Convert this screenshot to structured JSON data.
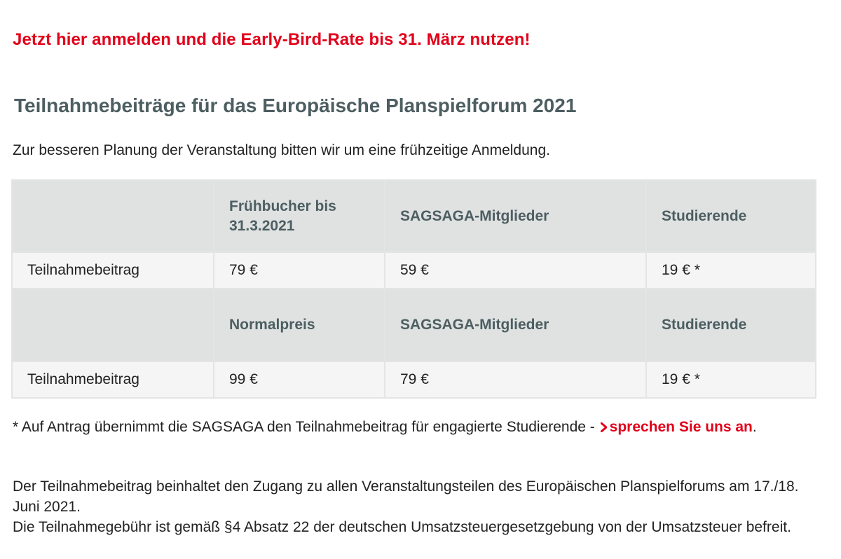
{
  "promo": "Jetzt hier anmelden und die Early-Bird-Rate bis 31. März nutzen!",
  "heading": "Teilnahmebeiträge für das Europäische Planspielforum 2021",
  "intro": "Zur besseren Planung der Veranstaltung bitten wir um eine frühzeitige Anmeldung.",
  "table": {
    "early": {
      "headers": [
        "",
        "Frühbucher bis 31.3.2021",
        "SAGSAGA-Mitglieder",
        "Studierende"
      ],
      "row_label": "Teilnahmebeitrag",
      "values": [
        "79 €",
        "59 €",
        "19 € *"
      ]
    },
    "regular": {
      "headers": [
        "",
        "Normalpreis",
        "SAGSAGA-Mitglieder",
        "Studierende"
      ],
      "row_label": "Teilnahmebeitrag",
      "values": [
        "99 €",
        "79 €",
        "19 € *"
      ]
    }
  },
  "footnote": {
    "text": "* Auf Antrag übernimmt die SAGSAGA den Teilnahmebeitrag für engagierte Studierende -",
    "link": "sprechen Sie uns an",
    "after": ".",
    "link_icon": "chevron-right-icon"
  },
  "info": {
    "line1": "Der Teilnahmebeitrag beinhaltet den Zugang zu allen Veranstaltungsteilen des Europäischen Planspielforums am 17./18. Juni 2021.",
    "line2": "Die Teilnahmegebühr ist gemäß §4 Absatz 22 der deutschen Umsatzsteuergesetzgebung von der Umsatzsteuer befreit."
  },
  "colors": {
    "accent_red": "#e2001a",
    "heading_gray": "#4d5e62",
    "table_header_bg": "#dfe2e1",
    "table_row_bg": "#f5f5f5"
  }
}
